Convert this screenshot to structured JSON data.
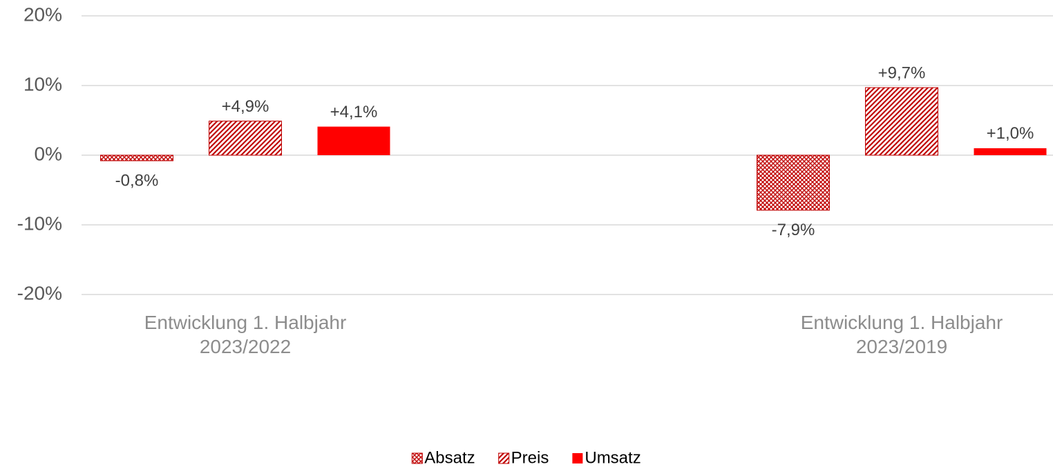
{
  "chart_data": {
    "type": "bar",
    "categories": [
      "Entwicklung 1. Halbjahr 2023/2022",
      "Entwicklung 1. Halbjahr 2023/2019"
    ],
    "series": [
      {
        "name": "Absatz",
        "color": "#c00000",
        "pattern": "crosshatch",
        "values": [
          -0.8,
          -7.9
        ],
        "value_labels": [
          "-0,8%",
          "-7,9%"
        ]
      },
      {
        "name": "Preis",
        "color": "#c00000",
        "pattern": "diagonal",
        "values": [
          4.9,
          9.7
        ],
        "value_labels": [
          "+4,9%",
          "+9,7%"
        ]
      },
      {
        "name": "Umsatz",
        "color": "#ff0000",
        "pattern": "solid",
        "values": [
          4.1,
          1.0
        ],
        "value_labels": [
          "+4,1%",
          "+1,0%"
        ]
      }
    ],
    "ylim": [
      -20,
      20
    ],
    "yticks": [
      {
        "value": -20,
        "label": "-20%"
      },
      {
        "value": -10,
        "label": "-10%"
      },
      {
        "value": 0,
        "label": "0%"
      },
      {
        "value": 10,
        "label": "10%"
      },
      {
        "value": 20,
        "label": "20%"
      }
    ],
    "grid": true,
    "legend": "bottom"
  }
}
